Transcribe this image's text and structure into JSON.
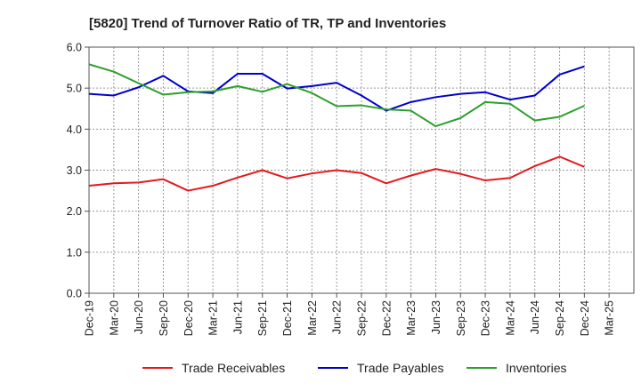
{
  "chart_data": {
    "type": "line",
    "title": "[5820]  Trend of Turnover Ratio of TR, TP and Inventories",
    "xlabel": "",
    "ylabel": "",
    "ylim": [
      0,
      6
    ],
    "yticks": [
      "0.0",
      "1.0",
      "2.0",
      "3.0",
      "4.0",
      "5.0",
      "6.0"
    ],
    "grid": true,
    "legend_position": "bottom",
    "x_tick_labels": [
      "Dec-19",
      "Mar-20",
      "Jun-20",
      "Sep-20",
      "Dec-20",
      "Mar-21",
      "Jun-21",
      "Sep-21",
      "Dec-21",
      "Mar-22",
      "Jun-22",
      "Sep-22",
      "Dec-22",
      "Mar-23",
      "Jun-23",
      "Sep-23",
      "Dec-23",
      "Mar-24",
      "Jun-24",
      "Sep-24",
      "Dec-24",
      "Mar-25"
    ],
    "x": [
      "Dec-19",
      "Mar-20",
      "Jun-20",
      "Sep-20",
      "Dec-20",
      "Mar-21",
      "Jun-21",
      "Sep-21",
      "Dec-21",
      "Mar-22",
      "Jun-22",
      "Sep-22",
      "Dec-22",
      "Mar-23",
      "Jun-23",
      "Sep-23",
      "Dec-23",
      "Mar-24",
      "Jun-24",
      "Sep-24",
      "Dec-24"
    ],
    "series": [
      {
        "name": "Trade Receivables",
        "color": "#e31a1c",
        "values": [
          2.62,
          2.68,
          2.7,
          2.78,
          2.5,
          2.62,
          2.82,
          3.0,
          2.8,
          2.92,
          3.0,
          2.93,
          2.68,
          2.87,
          3.03,
          2.91,
          2.75,
          2.81,
          3.1,
          3.33,
          3.08
        ]
      },
      {
        "name": "Trade Payables",
        "color": "#0000cc",
        "values": [
          4.86,
          4.82,
          5.02,
          5.3,
          4.92,
          4.88,
          5.35,
          5.35,
          4.99,
          5.05,
          5.13,
          4.82,
          4.45,
          4.66,
          4.78,
          4.86,
          4.9,
          4.72,
          4.82,
          5.33,
          5.53
        ]
      },
      {
        "name": "Inventories",
        "color": "#2ca02c",
        "values": [
          5.58,
          5.4,
          5.12,
          4.84,
          4.9,
          4.92,
          5.05,
          4.91,
          5.1,
          4.88,
          4.56,
          4.58,
          4.48,
          4.45,
          4.07,
          4.27,
          4.66,
          4.62,
          4.21,
          4.3,
          4.57
        ]
      }
    ]
  }
}
